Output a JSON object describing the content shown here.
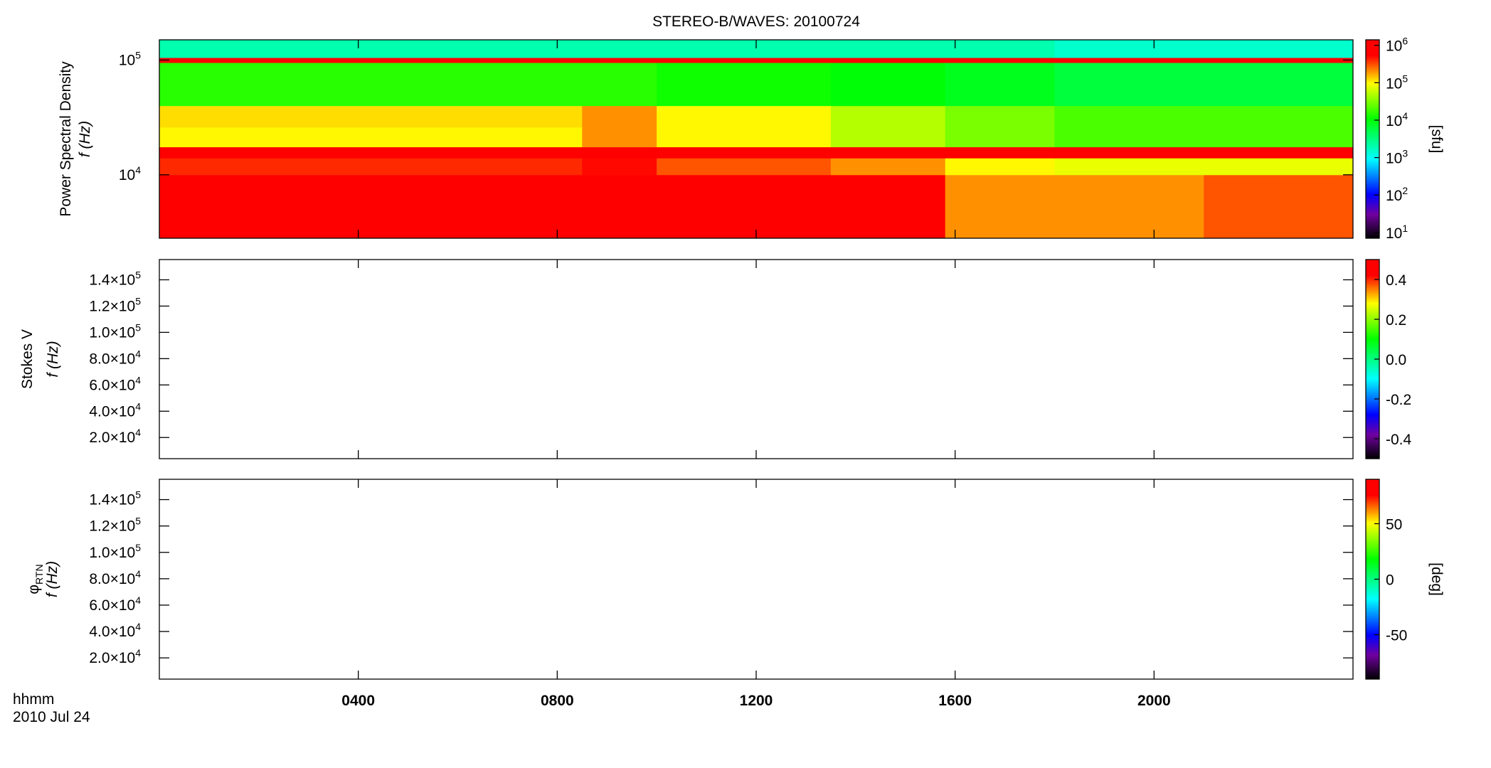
{
  "colormap": {
    "positions": [
      0,
      0.12,
      0.22,
      0.4,
      0.6,
      0.78,
      0.92,
      1
    ],
    "colors": [
      "#000000",
      "#7000a0",
      "#0000ff",
      "#00ffff",
      "#00ff00",
      "#ffff00",
      "#ff0000",
      "#ff0000"
    ]
  },
  "chart_data": [
    {
      "type": "heatmap",
      "title": "STEREO-B/WAVES: 20100724",
      "y_label": "Power Spectral Density",
      "y_label2": "f (Hz)",
      "ylog": true,
      "ylim": [
        2800,
        150000
      ],
      "yticks": [
        {
          "value": 10000,
          "label": "10",
          "sup": "4"
        },
        {
          "value": 100000,
          "label": "10",
          "sup": "5"
        }
      ],
      "x_edges": [
        0,
        4,
        8.5,
        10,
        13.5,
        15.8,
        18,
        21,
        24
      ],
      "y_edges": [
        2800,
        10000,
        14000,
        17500,
        26000,
        40000,
        95000,
        105000,
        150000
      ],
      "z": [
        [
          1000000,
          1000000,
          1000000,
          1000000,
          600000,
          200000,
          200000,
          300000
        ],
        [
          400000,
          400000,
          500000,
          300000,
          200000,
          100000,
          80000,
          80000
        ],
        [
          1000000,
          1000000,
          1000000,
          1000000,
          1000000,
          1000000,
          1000000,
          1000000
        ],
        [
          100000,
          100000,
          200000,
          100000,
          50000,
          30000,
          20000,
          20000
        ],
        [
          120000,
          120000,
          200000,
          100000,
          50000,
          30000,
          20000,
          20000
        ],
        [
          15000,
          15000,
          15000,
          12000,
          10000,
          8000,
          6000,
          6000
        ],
        [
          1000000,
          1000000,
          1000000,
          1000000,
          1000000,
          1000000,
          1000000,
          1000000
        ],
        [
          2000,
          2000,
          2000,
          2000,
          2000,
          2000,
          1500,
          1500
        ]
      ],
      "colorbar": {
        "log": true,
        "lim": [
          7,
          1400000
        ],
        "label": "[sfu]",
        "ticks": [
          {
            "value": 10,
            "label": "10",
            "sup": "1"
          },
          {
            "value": 100,
            "label": "10",
            "sup": "2"
          },
          {
            "value": 1000,
            "label": "10",
            "sup": "3"
          },
          {
            "value": 10000,
            "label": "10",
            "sup": "4"
          },
          {
            "value": 100000,
            "label": "10",
            "sup": "5"
          },
          {
            "value": 1000000,
            "label": "10",
            "sup": "6"
          }
        ]
      }
    },
    {
      "type": "heatmap",
      "y_label": "Stokes V",
      "y_label2": "f (Hz)",
      "ylog": false,
      "ylim": [
        3900,
        155400
      ],
      "yticks": [
        {
          "value": 20000,
          "label": "2.0×10",
          "sup": "4"
        },
        {
          "value": 40000,
          "label": "4.0×10",
          "sup": "4"
        },
        {
          "value": 60000,
          "label": "6.0×10",
          "sup": "4"
        },
        {
          "value": 80000,
          "label": "8.0×10",
          "sup": "4"
        },
        {
          "value": 100000,
          "label": "1.0×10",
          "sup": "5"
        },
        {
          "value": 120000,
          "label": "1.2×10",
          "sup": "5"
        },
        {
          "value": 140000,
          "label": "1.4×10",
          "sup": "5"
        }
      ],
      "colorbar": {
        "log": false,
        "lim": [
          -0.5,
          0.5
        ],
        "ticks": [
          -0.4,
          -0.2,
          {
            "value": 0,
            "label": "0.0"
          },
          0.2,
          0.4
        ]
      }
    },
    {
      "type": "heatmap",
      "y_label": "φ",
      "y_label_sub": "RTN",
      "y_label2": "f (Hz)",
      "ylog": false,
      "ylim": [
        3900,
        155400
      ],
      "yticks": [
        {
          "value": 20000,
          "label": "2.0×10",
          "sup": "4"
        },
        {
          "value": 40000,
          "label": "4.0×10",
          "sup": "4"
        },
        {
          "value": 60000,
          "label": "6.0×10",
          "sup": "4"
        },
        {
          "value": 80000,
          "label": "8.0×10",
          "sup": "4"
        },
        {
          "value": 100000,
          "label": "1.0×10",
          "sup": "5"
        },
        {
          "value": 120000,
          "label": "1.2×10",
          "sup": "5"
        },
        {
          "value": 140000,
          "label": "1.4×10",
          "sup": "5"
        }
      ],
      "colorbar": {
        "log": false,
        "lim": [
          -90,
          90
        ],
        "label": "[deg]",
        "ticks": [
          -50,
          0,
          50
        ]
      },
      "xlim": [
        0,
        24
      ],
      "xticks": [
        {
          "value": 4,
          "label": "0400"
        },
        {
          "value": 8,
          "label": "0800"
        },
        {
          "value": 12,
          "label": "1200"
        },
        {
          "value": 16,
          "label": "1600"
        },
        {
          "value": 20,
          "label": "2000"
        }
      ],
      "x_label": "hhmm",
      "date": "2010 Jul 24"
    }
  ]
}
